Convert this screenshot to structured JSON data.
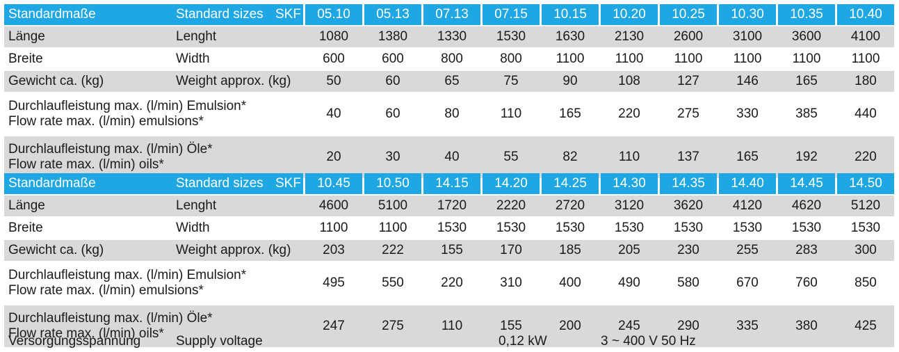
{
  "header_de": "Standardmaße",
  "header_en": "Standard sizes",
  "header_brand": "SKF",
  "tables": [
    {
      "sizes": [
        "05.10",
        "05.13",
        "07.13",
        "07.15",
        "10.15",
        "10.20",
        "10.25",
        "10.30",
        "10.35",
        "10.40"
      ],
      "rows": [
        {
          "de": "Länge",
          "en": "Lenght",
          "values": [
            "1080",
            "1380",
            "1330",
            "1530",
            "1630",
            "2130",
            "2600",
            "3100",
            "3600",
            "4100"
          ]
        },
        {
          "de": "Breite",
          "en": "Width",
          "values": [
            "600",
            "600",
            "800",
            "800",
            "1100",
            "1100",
            "1100",
            "1100",
            "1100",
            "1100"
          ]
        },
        {
          "de": "Gewicht ca. (kg)",
          "en": "Weight approx. (kg)",
          "values": [
            "50",
            "60",
            "65",
            "75",
            "90",
            "108",
            "127",
            "146",
            "165",
            "180"
          ]
        },
        {
          "de": "Durchlaufleistung max. (l/min) Emulsion*",
          "en": "Flow rate max. (l/min) emulsions*",
          "values": [
            "40",
            "60",
            "80",
            "110",
            "165",
            "220",
            "275",
            "330",
            "385",
            "440"
          ]
        },
        {
          "de": "Durchlaufleistung max. (l/min) Öle*",
          "en": "Flow rate max. (l/min) oils*",
          "values": [
            "20",
            "30",
            "40",
            "55",
            "82",
            "110",
            "137",
            "165",
            "192",
            "220"
          ]
        }
      ]
    },
    {
      "sizes": [
        "10.45",
        "10.50",
        "14.15",
        "14.20",
        "14.25",
        "14.30",
        "14.35",
        "14.40",
        "14.45",
        "14.50"
      ],
      "rows": [
        {
          "de": "Länge",
          "en": "Lenght",
          "values": [
            "4600",
            "5100",
            "1720",
            "2220",
            "2720",
            "3120",
            "3620",
            "4120",
            "4620",
            "5120"
          ]
        },
        {
          "de": "Breite",
          "en": "Width",
          "values": [
            "1100",
            "1100",
            "1530",
            "1530",
            "1530",
            "1530",
            "1530",
            "1530",
            "1530",
            "1530"
          ]
        },
        {
          "de": "Gewicht ca. (kg)",
          "en": "Weight approx. (kg)",
          "values": [
            "203",
            "222",
            "155",
            "170",
            "185",
            "205",
            "230",
            "255",
            "283",
            "300"
          ]
        },
        {
          "de": "Durchlaufleistung max. (l/min) Emulsion*",
          "en": "Flow rate max. (l/min) emulsions*",
          "values": [
            "495",
            "550",
            "220",
            "310",
            "400",
            "490",
            "580",
            "670",
            "760",
            "850"
          ]
        },
        {
          "de": "Durchlaufleistung max. (l/min) Öle*",
          "en": "Flow rate max. (l/min) oils*",
          "values": [
            "247",
            "275",
            "110",
            "155",
            "200",
            "245",
            "290",
            "335",
            "380",
            "425"
          ]
        }
      ]
    }
  ],
  "footer": {
    "de": "Versorgungsspannung",
    "en": "Supply voltage",
    "power": "0,12 kW",
    "voltage": "3 ~ 400 V 50 Hz"
  },
  "colors": {
    "header_blue": "#1fa7e3",
    "row_gray": "#d9d9da",
    "header_text": "#ffffff"
  }
}
